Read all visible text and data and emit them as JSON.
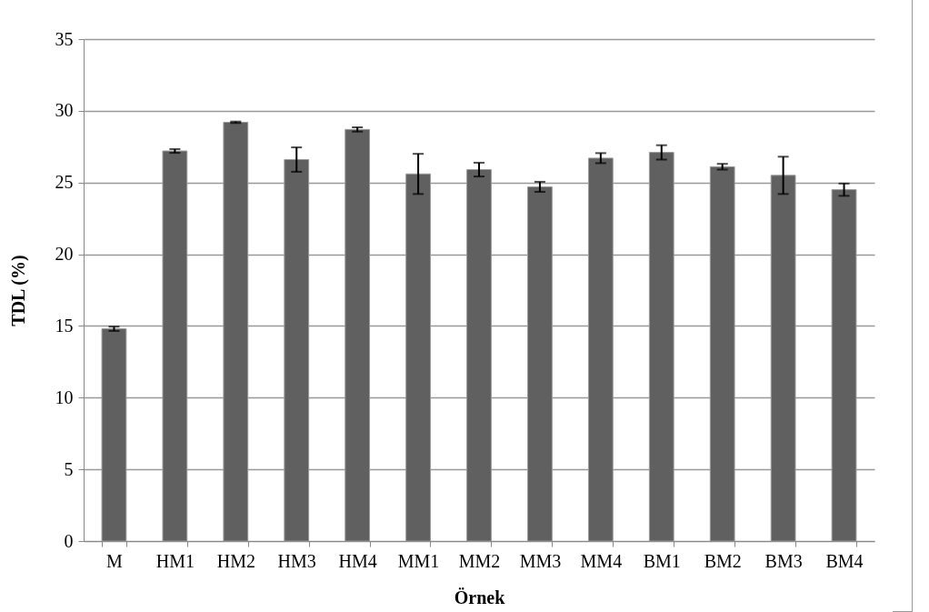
{
  "chart_data": {
    "type": "bar",
    "xlabel": "Örnek",
    "ylabel": "TDL (%)",
    "categories": [
      "M",
      "HM1",
      "HM2",
      "HM3",
      "HM4",
      "MM1",
      "MM2",
      "MM3",
      "MM4",
      "BM1",
      "BM2",
      "BM3",
      "BM4"
    ],
    "values": [
      14.8,
      27.2,
      29.2,
      26.6,
      28.7,
      25.6,
      25.9,
      24.7,
      26.7,
      27.1,
      26.1,
      25.5,
      24.5
    ],
    "errors": [
      0.15,
      0.13,
      0.05,
      0.85,
      0.15,
      1.4,
      0.48,
      0.35,
      0.35,
      0.5,
      0.2,
      1.3,
      0.43
    ],
    "color": "#606060",
    "ylim": [
      0,
      35
    ],
    "yticks": [
      0,
      5,
      10,
      15,
      20,
      25,
      30,
      35
    ],
    "grid": "y"
  }
}
